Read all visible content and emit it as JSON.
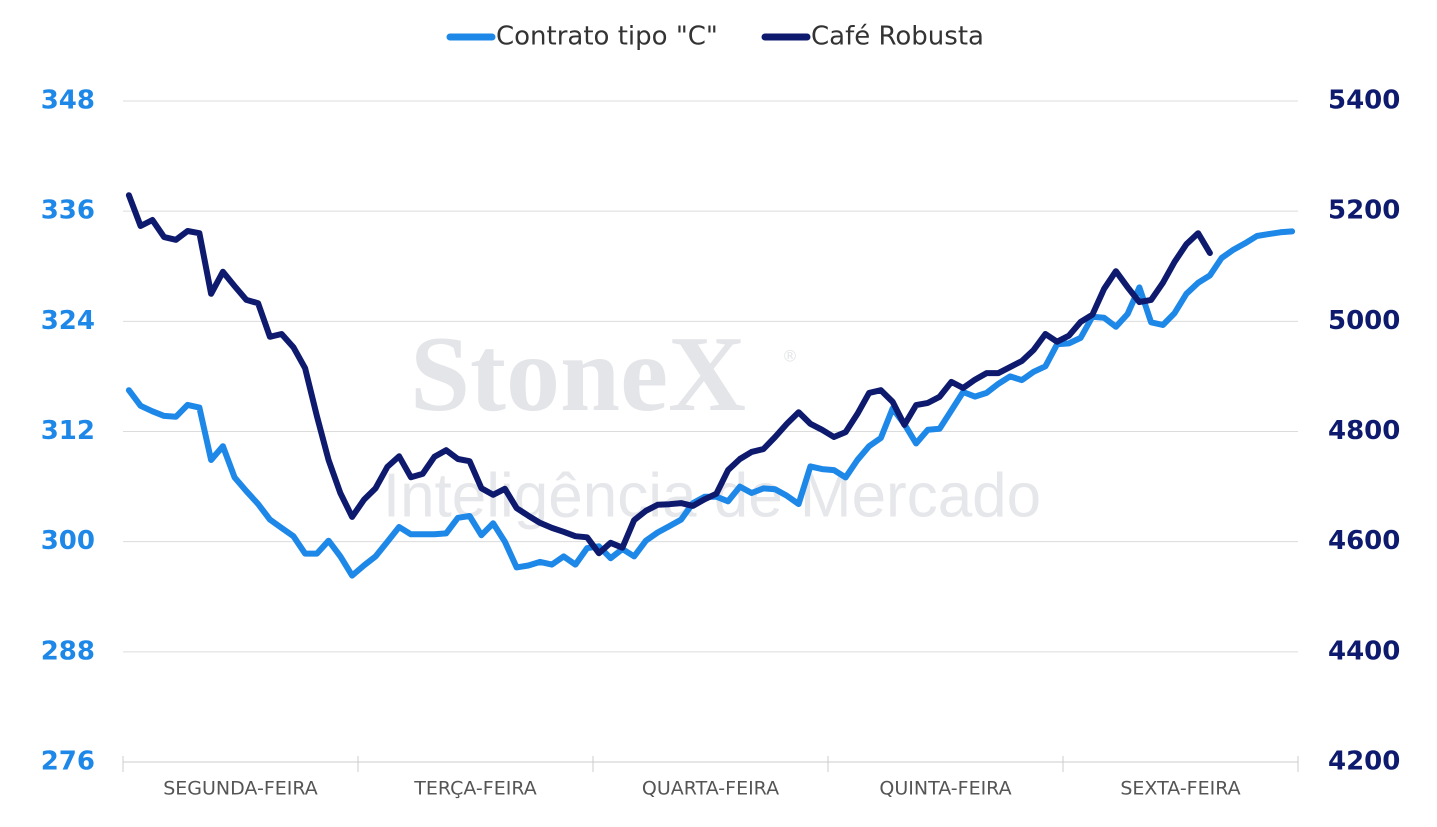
{
  "chart_data": {
    "type": "line",
    "watermark": {
      "title": "StoneX",
      "mark": "®",
      "subtitle": "Inteligência de Mercado"
    },
    "categories": [
      null,
      null,
      null,
      null,
      null,
      null,
      null,
      null,
      null,
      null,
      "SEGUNDA-FEIRA",
      null,
      null,
      null,
      null,
      null,
      null,
      null,
      null,
      null,
      null,
      null,
      null,
      null,
      null,
      null,
      null,
      null,
      null,
      null,
      "TERÇA-FEIRA",
      null,
      null,
      null,
      null,
      null,
      null,
      null,
      null,
      null,
      null,
      null,
      null,
      null,
      null,
      null,
      null,
      null,
      null,
      null,
      "QUARTA-FEIRA",
      null,
      null,
      null,
      null,
      null,
      null,
      null,
      null,
      null,
      null,
      null,
      null,
      null,
      null,
      null,
      null,
      null,
      null,
      null,
      "QUINTA-FEIRA",
      null,
      null,
      null,
      null,
      null,
      null,
      null,
      null,
      null,
      null,
      null,
      null,
      null,
      null,
      null,
      null,
      null,
      null,
      null,
      "SEXTA-FEIRA",
      null,
      null,
      null,
      null,
      null,
      null,
      null,
      null,
      null
    ],
    "series": [
      {
        "name": "Contrato tipo \"C\"",
        "color": "#1e88e8",
        "axis": "y",
        "values": [
          316.5,
          314.8,
          314.2,
          313.7,
          313.6,
          314.9,
          314.6,
          308.9,
          310.4,
          307,
          305.5,
          304.1,
          302.4,
          301.5,
          300.6,
          298.7,
          298.7,
          300.1,
          298.4,
          296.3,
          297.4,
          298.4,
          300,
          301.6,
          300.8,
          300.8,
          300.8,
          300.9,
          302.6,
          302.8,
          300.7,
          302,
          300,
          297.2,
          297.4,
          297.8,
          297.5,
          298.4,
          297.5,
          299.3,
          299.5,
          298.2,
          299.2,
          298.4,
          300.1,
          301,
          301.7,
          302.4,
          304.2,
          304.9,
          304.9,
          304.4,
          306,
          305.3,
          305.8,
          305.7,
          305,
          304.1,
          308.2,
          307.9,
          307.8,
          307,
          308.9,
          310.4,
          311.3,
          314.5,
          312.8,
          310.7,
          312.2,
          312.3,
          314.3,
          316.3,
          315.8,
          316.2,
          317.2,
          318,
          317.6,
          318.5,
          319.1,
          321.5,
          321.6,
          322.2,
          324.5,
          324.4,
          323.4,
          324.8,
          327.7,
          323.9,
          323.6,
          324.9,
          327,
          328.2,
          329,
          330.9,
          331.8,
          332.5,
          333.3,
          333.5,
          333.7,
          333.8
        ]
      },
      {
        "name": "Café Robusta",
        "color": "#0e1a6e",
        "axis": "y2",
        "values": [
          5229,
          5173,
          5184,
          5153,
          5148,
          5164,
          5160,
          5050,
          5090,
          5064,
          5039,
          5033,
          4972,
          4977,
          4953,
          4915,
          4828,
          4748,
          4688,
          4645,
          4676,
          4697,
          4736,
          4755,
          4717,
          4723,
          4754,
          4766,
          4750,
          4746,
          4697,
          4685,
          4696,
          4661,
          4647,
          4634,
          4625,
          4618,
          4610,
          4608,
          4579,
          4598,
          4589,
          4639,
          4656,
          4667,
          4668,
          4670,
          4665,
          4677,
          4687,
          4730,
          4750,
          4763,
          4768,
          4790,
          4814,
          4835,
          4814,
          4803,
          4790,
          4799,
          4832,
          4870,
          4875,
          4854,
          4812,
          4848,
          4852,
          4863,
          4890,
          4879,
          4894,
          4906,
          4906,
          4917,
          4928,
          4948,
          4977,
          4963,
          4974,
          4999,
          5012,
          5059,
          5091,
          5062,
          5035,
          5039,
          5070,
          5108,
          5140,
          5160,
          5124,
          null,
          null,
          null,
          null,
          null,
          null,
          null
        ]
      }
    ],
    "ylim": [
      276,
      348
    ],
    "yticks": [
      276,
      288,
      300,
      312,
      324,
      336,
      348
    ],
    "ytick_color": "#1e88e8",
    "y2lim": [
      4200,
      5400
    ],
    "y2ticks": [
      4200,
      4400,
      4600,
      4800,
      5000,
      5200,
      5400
    ],
    "y2tick_color": "#0e1a6e",
    "grid": true,
    "legend": "top"
  }
}
